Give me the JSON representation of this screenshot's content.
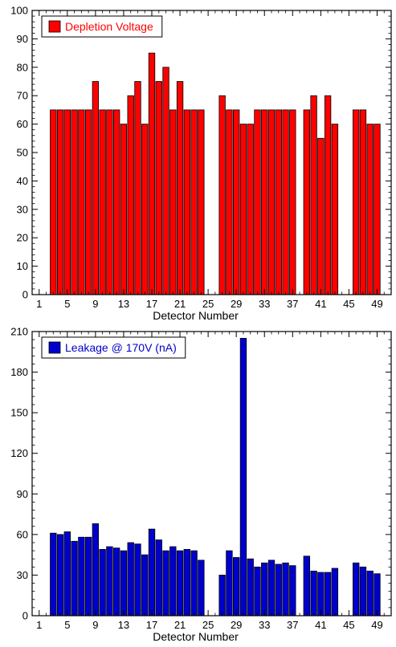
{
  "chart_data": [
    {
      "type": "bar",
      "xlabel": "Detector Number",
      "ylabel": "",
      "xlim": [
        0,
        51
      ],
      "ylim": [
        0,
        100
      ],
      "yticks": [
        0,
        10,
        20,
        30,
        40,
        50,
        60,
        70,
        80,
        90,
        100
      ],
      "xticks": [
        1,
        5,
        9,
        13,
        17,
        21,
        25,
        29,
        33,
        37,
        41,
        45,
        49
      ],
      "legend_position": "top-left",
      "grid": false,
      "series": [
        {
          "name": "Depletion Voltage",
          "color": "#ff0000",
          "x": [
            3,
            4,
            5,
            6,
            7,
            8,
            9,
            10,
            11,
            12,
            13,
            14,
            15,
            16,
            17,
            18,
            19,
            20,
            21,
            22,
            23,
            24,
            27,
            28,
            29,
            30,
            31,
            32,
            33,
            34,
            35,
            36,
            37,
            39,
            40,
            41,
            42,
            43,
            46,
            47,
            48,
            49
          ],
          "values": [
            65,
            65,
            65,
            65,
            65,
            65,
            75,
            65,
            65,
            65,
            60,
            70,
            75,
            60,
            85,
            75,
            80,
            65,
            75,
            65,
            65,
            65,
            70,
            65,
            65,
            60,
            60,
            65,
            65,
            65,
            65,
            65,
            65,
            65,
            70,
            55,
            70,
            60,
            65,
            65,
            60,
            60
          ]
        }
      ]
    },
    {
      "type": "bar",
      "xlabel": "Detector Number",
      "ylabel": "",
      "xlim": [
        0,
        51
      ],
      "ylim": [
        0,
        210
      ],
      "yticks": [
        0,
        30,
        60,
        90,
        120,
        150,
        180,
        210
      ],
      "xticks": [
        1,
        5,
        9,
        13,
        17,
        21,
        25,
        29,
        33,
        37,
        41,
        45,
        49
      ],
      "legend_position": "top-left",
      "grid": false,
      "series": [
        {
          "name": "Leakage @ 170V (nA)",
          "color": "#0000cc",
          "x": [
            3,
            4,
            5,
            6,
            7,
            8,
            9,
            10,
            11,
            12,
            13,
            14,
            15,
            16,
            17,
            18,
            19,
            20,
            21,
            22,
            23,
            24,
            27,
            28,
            29,
            30,
            31,
            32,
            33,
            34,
            35,
            36,
            37,
            39,
            40,
            41,
            42,
            43,
            46,
            47,
            48,
            49
          ],
          "values": [
            61,
            60,
            62,
            55,
            58,
            58,
            68,
            49,
            51,
            50,
            48,
            54,
            53,
            45,
            64,
            56,
            48,
            51,
            48,
            49,
            48,
            41,
            30,
            48,
            43,
            205,
            42,
            36,
            39,
            41,
            38,
            39,
            37,
            44,
            33,
            32,
            32,
            35,
            39,
            36,
            33,
            31
          ]
        }
      ]
    }
  ]
}
